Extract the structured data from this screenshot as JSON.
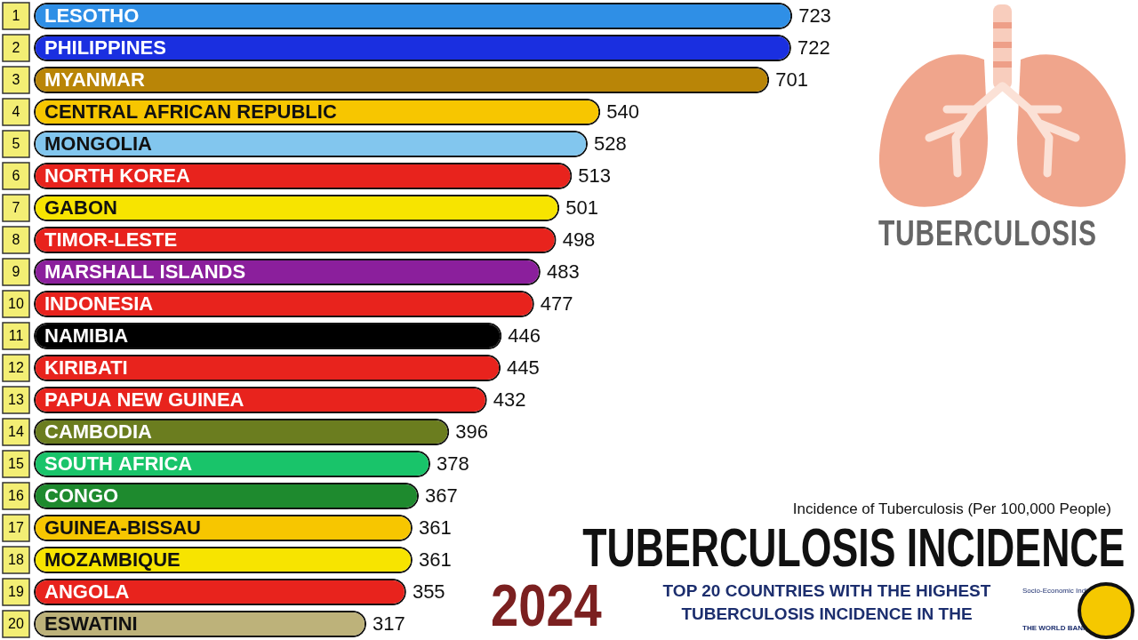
{
  "chart_data": {
    "type": "bar",
    "orientation": "horizontal",
    "title": "TUBERCULOSIS INCIDENCE",
    "year_label": "2024",
    "subtitle": "TOP 20 COUNTRIES WITH THE HIGHEST TUBERCULOSIS INCIDENCE IN THE",
    "xlabel": "Incidence of Tuberculosis (Per 100,000 People)",
    "icon_label": "TUBERCULOSIS",
    "source": [
      "Socio-Economic Indicators",
      "THE WORLD BANK"
    ],
    "ranks": [
      1,
      2,
      3,
      4,
      5,
      6,
      7,
      8,
      9,
      10,
      11,
      12,
      13,
      14,
      15,
      16,
      17,
      18,
      19,
      20
    ],
    "categories": [
      "LESOTHO",
      "PHILIPPINES",
      "MYANMAR",
      "CENTRAL AFRICAN REPUBLIC",
      "MONGOLIA",
      "NORTH KOREA",
      "GABON",
      "TIMOR-LESTE",
      "MARSHALL ISLANDS",
      "INDONESIA",
      "NAMIBIA",
      "KIRIBATI",
      "PAPUA NEW GUINEA",
      "CAMBODIA",
      "SOUTH AFRICA",
      "CONGO",
      "GUINEA-BISSAU",
      "MOZAMBIQUE",
      "ANGOLA",
      "ESWATINI"
    ],
    "values": [
      723,
      722,
      701,
      540,
      528,
      513,
      501,
      498,
      483,
      477,
      446,
      445,
      432,
      396,
      378,
      367,
      361,
      361,
      355,
      317
    ],
    "colors": [
      "#2f8fe6",
      "#1a2fe0",
      "#b98507",
      "#f7c600",
      "#82c6ee",
      "#e8231d",
      "#f7e400",
      "#e8231d",
      "#8b1f9c",
      "#e8231d",
      "#000000",
      "#e8231d",
      "#e8231d",
      "#6b7d1f",
      "#19c46a",
      "#1e8a2e",
      "#f7c600",
      "#f7e400",
      "#e8231d",
      "#bdb27a"
    ],
    "xlim": [
      0,
      1000
    ],
    "data_labels": true,
    "tick_labels": false,
    "grid": false
  }
}
